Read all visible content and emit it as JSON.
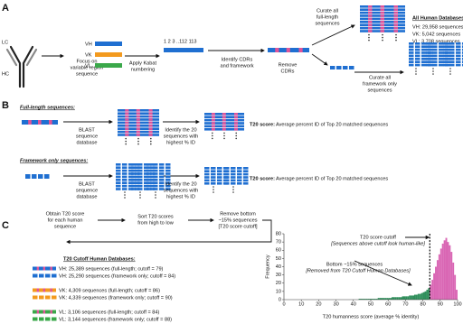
{
  "panel_a": {
    "label": "A",
    "lc": "LC",
    "hc": "HC",
    "focus": [
      "Focus on",
      "variable region",
      "sequence"
    ],
    "chains": [
      "VH",
      "VK",
      "VL"
    ],
    "kabat": [
      "Apply Kabat",
      "numbering"
    ],
    "numbering": "1 2 3 ..112 113",
    "identify": [
      "Identify CDRs",
      "and framework"
    ],
    "curate_full": [
      "Curate all",
      "full-length",
      "sequences"
    ],
    "remove": [
      "Remove",
      "CDRs"
    ],
    "curate_framework": [
      "Curate all",
      "framework only",
      "sequences"
    ],
    "databases_title": "All Human Databases:",
    "databases": [
      "VH: 29,958 sequences",
      "VK: 5,042 sequences",
      "VL: 3,708 sequences"
    ]
  },
  "panel_b": {
    "label": "B",
    "full_title": "Full-length sequences:",
    "framework_title": "Framework only sequences:",
    "blast": [
      "BLAST",
      "sequence",
      "database"
    ],
    "identify": [
      "Identify the 20",
      "sequences with",
      "highest % ID"
    ],
    "score_label": "T20 score:",
    "score_text": "Average percent ID of Top 20 matched sequences"
  },
  "panel_c": {
    "label": "C",
    "obtain": [
      "Obtain T20 score",
      "for each human",
      "sequence"
    ],
    "sort": [
      "Sort T20 scores",
      "from high to low"
    ],
    "remove": [
      "Remove bottom",
      "~15% sequences",
      "[T20 score cutoff]"
    ],
    "databases_title": "T20 Cutoff Human Databases:",
    "databases": [
      "VH: 25,389 sequences (full-length; cutoff = 79)",
      "VH: 25,290 sequences (framework only; cutoff = 84)",
      "VK: 4,309 sequences (full-length; cutoff = 86)",
      "VK: 4,339 sequences (framework only; cutoff = 90)",
      "VL: 3,106 sequences (full-length; cutoff = 84)",
      "VL: 3,144 sequences (framework only; cutoff = 88)"
    ]
  },
  "chart_data": {
    "type": "histogram",
    "xlabel": "T20 humanness score (average % identity)",
    "ylabel": "Frequency",
    "bins": [
      40,
      41,
      42,
      43,
      44,
      45,
      46,
      47,
      48,
      49,
      50,
      51,
      52,
      53,
      54,
      55,
      56,
      57,
      58,
      59,
      60,
      61,
      62,
      63,
      64,
      65,
      66,
      67,
      68,
      69,
      70,
      71,
      72,
      73,
      74,
      75,
      76,
      77,
      78,
      79,
      80,
      81,
      82,
      83,
      84,
      85,
      86,
      87,
      88,
      89,
      90,
      91,
      92,
      93,
      94,
      95,
      96,
      97,
      98,
      99,
      100
    ],
    "values": [
      0,
      0,
      0,
      1,
      1,
      1,
      1,
      1,
      1,
      1,
      1,
      1,
      1,
      1,
      2,
      2,
      2,
      2,
      2,
      2,
      2,
      2,
      3,
      3,
      3,
      3,
      3,
      3,
      4,
      4,
      4,
      4,
      5,
      5,
      5,
      6,
      6,
      7,
      7,
      8,
      9,
      10,
      12,
      14,
      18,
      24,
      32,
      40,
      48,
      55,
      62,
      68,
      72,
      75,
      70,
      66,
      58,
      45,
      30,
      12
    ],
    "xlim": [
      0,
      100
    ],
    "ylim": [
      0,
      80
    ],
    "xticks": [
      0,
      10,
      20,
      30,
      40,
      50,
      60,
      70,
      80,
      90,
      100
    ],
    "yticks": [
      0,
      10,
      20,
      30,
      40,
      50,
      60,
      70,
      80
    ],
    "cutoff": 84,
    "colors": {
      "below": "#2f8f5b",
      "above": "#d966b4"
    },
    "annotations": [
      "T20 score cutoff",
      "[Sequences above cutoff look human-like]",
      "Bottom ~15% sequences",
      "[Removed from T20 Cutoff Human Databases]"
    ]
  }
}
